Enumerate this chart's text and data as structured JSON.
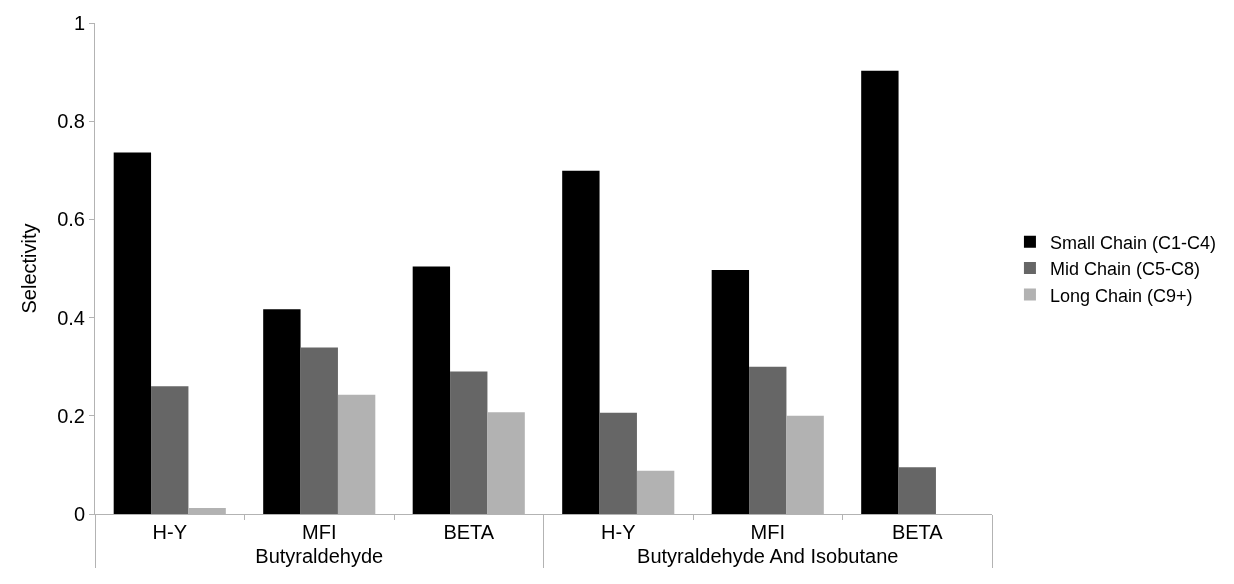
{
  "chart_data": {
    "type": "bar",
    "ylabel": "Selectivity",
    "categories": [
      "H-Y",
      "MFI",
      "BETA",
      "H-Y",
      "MFI",
      "BETA"
    ],
    "annotations": [
      "Butyraldehyde",
      "Butyraldehyde And Isobutane"
    ],
    "series": [
      {
        "name": "Small Chain (C1-C4)",
        "color": "#000000",
        "values": [
          0.736,
          0.417,
          0.504,
          0.699,
          0.497,
          0.903
        ]
      },
      {
        "name": "Mid Chain (C5-C8)",
        "color": "#666666",
        "values": [
          0.26,
          0.339,
          0.29,
          0.206,
          0.3,
          0.095
        ]
      },
      {
        "name": "Long Chain (C9+)",
        "color": "#b2b2b2",
        "values": [
          0.012,
          0.243,
          0.207,
          0.088,
          0.2,
          0
        ]
      }
    ],
    "ylim": [
      0,
      1
    ],
    "yticks": [
      0,
      0.2,
      0.4,
      0.6,
      0.8,
      1
    ],
    "grid": false,
    "legend": "right"
  }
}
